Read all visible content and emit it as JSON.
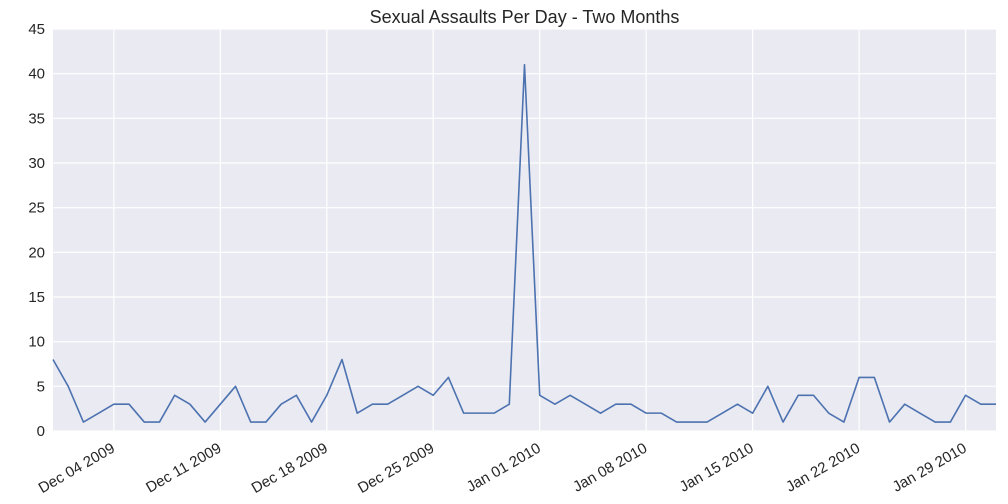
{
  "chart_data": {
    "type": "line",
    "title": "Sexual Assaults Per Day - Two Months",
    "xlabel": "",
    "ylabel": "",
    "x_start": "2009-11-30",
    "x_end": "2010-01-31",
    "ylim": [
      0,
      45
    ],
    "y_ticks": [
      0,
      5,
      10,
      15,
      20,
      25,
      30,
      35,
      40,
      45
    ],
    "x_ticks": [
      {
        "date": "2009-12-04",
        "label": "Dec 04 2009"
      },
      {
        "date": "2009-12-11",
        "label": "Dec 11 2009"
      },
      {
        "date": "2009-12-18",
        "label": "Dec 18 2009"
      },
      {
        "date": "2009-12-25",
        "label": "Dec 25 2009"
      },
      {
        "date": "2010-01-01",
        "label": "Jan 01 2010"
      },
      {
        "date": "2010-01-08",
        "label": "Jan 08 2010"
      },
      {
        "date": "2010-01-15",
        "label": "Jan 15 2010"
      },
      {
        "date": "2010-01-22",
        "label": "Jan 22 2010"
      },
      {
        "date": "2010-01-29",
        "label": "Jan 29 2010"
      }
    ],
    "grid": true,
    "series_color": "#4c72b0",
    "background_color": "#eaeaf2",
    "grid_color": "#ffffff",
    "series": [
      {
        "x": [
          "2009-11-30",
          "2009-12-01",
          "2009-12-02",
          "2009-12-03",
          "2009-12-04",
          "2009-12-05",
          "2009-12-06",
          "2009-12-07",
          "2009-12-08",
          "2009-12-09",
          "2009-12-10",
          "2009-12-11",
          "2009-12-12",
          "2009-12-13",
          "2009-12-14",
          "2009-12-15",
          "2009-12-16",
          "2009-12-17",
          "2009-12-18",
          "2009-12-19",
          "2009-12-20",
          "2009-12-21",
          "2009-12-22",
          "2009-12-23",
          "2009-12-24",
          "2009-12-25",
          "2009-12-26",
          "2009-12-27",
          "2009-12-28",
          "2009-12-29",
          "2009-12-30",
          "2009-12-31",
          "2010-01-01",
          "2010-01-02",
          "2010-01-03",
          "2010-01-04",
          "2010-01-05",
          "2010-01-06",
          "2010-01-07",
          "2010-01-08",
          "2010-01-09",
          "2010-01-10",
          "2010-01-11",
          "2010-01-12",
          "2010-01-13",
          "2010-01-14",
          "2010-01-15",
          "2010-01-16",
          "2010-01-17",
          "2010-01-18",
          "2010-01-19",
          "2010-01-20",
          "2010-01-21",
          "2010-01-22",
          "2010-01-23",
          "2010-01-24",
          "2010-01-25",
          "2010-01-26",
          "2010-01-27",
          "2010-01-28",
          "2010-01-29",
          "2010-01-30",
          "2010-01-31"
        ],
        "values": [
          8,
          5,
          1,
          2,
          3,
          3,
          1,
          1,
          4,
          3,
          1,
          3,
          5,
          1,
          1,
          3,
          4,
          1,
          4,
          8,
          2,
          3,
          3,
          4,
          5,
          4,
          6,
          2,
          2,
          2,
          3,
          41,
          4,
          3,
          4,
          3,
          2,
          3,
          3,
          2,
          2,
          1,
          1,
          1,
          2,
          3,
          2,
          5,
          1,
          4,
          4,
          2,
          1,
          6,
          6,
          1,
          3,
          2,
          1,
          1,
          4,
          3,
          3
        ]
      }
    ]
  }
}
